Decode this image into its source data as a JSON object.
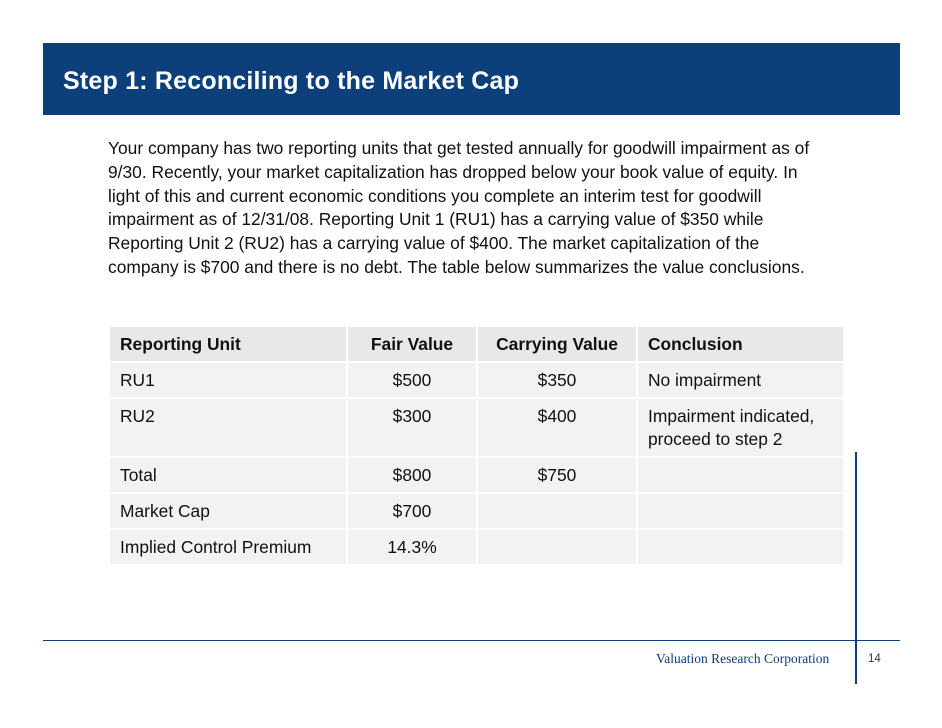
{
  "slide": {
    "title": "Step 1: Reconciling to the Market Cap",
    "intro": "Your company has two reporting units that get tested annually for goodwill impairment as of 9/30. Recently, your market capitalization has dropped below your book value of equity. In light of this and current economic conditions you complete an interim test for goodwill impairment as of 12/31/08. Reporting Unit 1 (RU1) has a carrying value of $350 while Reporting Unit 2 (RU2) has a carrying value of $400. The market capitalization of the company is $700 and there is no debt. The table below summarizes the value conclusions."
  },
  "table": {
    "headers": [
      "Reporting Unit",
      "Fair Value",
      "Carrying Value",
      "Conclusion"
    ],
    "rows": [
      [
        "RU1",
        "$500",
        "$350",
        "No impairment"
      ],
      [
        "RU2",
        "$300",
        "$400",
        "Impairment indicated, proceed to step 2"
      ],
      [
        "Total",
        "$800",
        "$750",
        ""
      ],
      [
        "Market Cap",
        "$700",
        "",
        ""
      ],
      [
        "Implied Control Premium",
        "14.3%",
        "",
        ""
      ]
    ]
  },
  "footer": {
    "company": "Valuation Research Corporation",
    "page_number": "14"
  },
  "colors": {
    "brand_blue": "#0d3f7a",
    "cell_background": "#f2f2f2",
    "header_background": "#e8e8e8"
  }
}
